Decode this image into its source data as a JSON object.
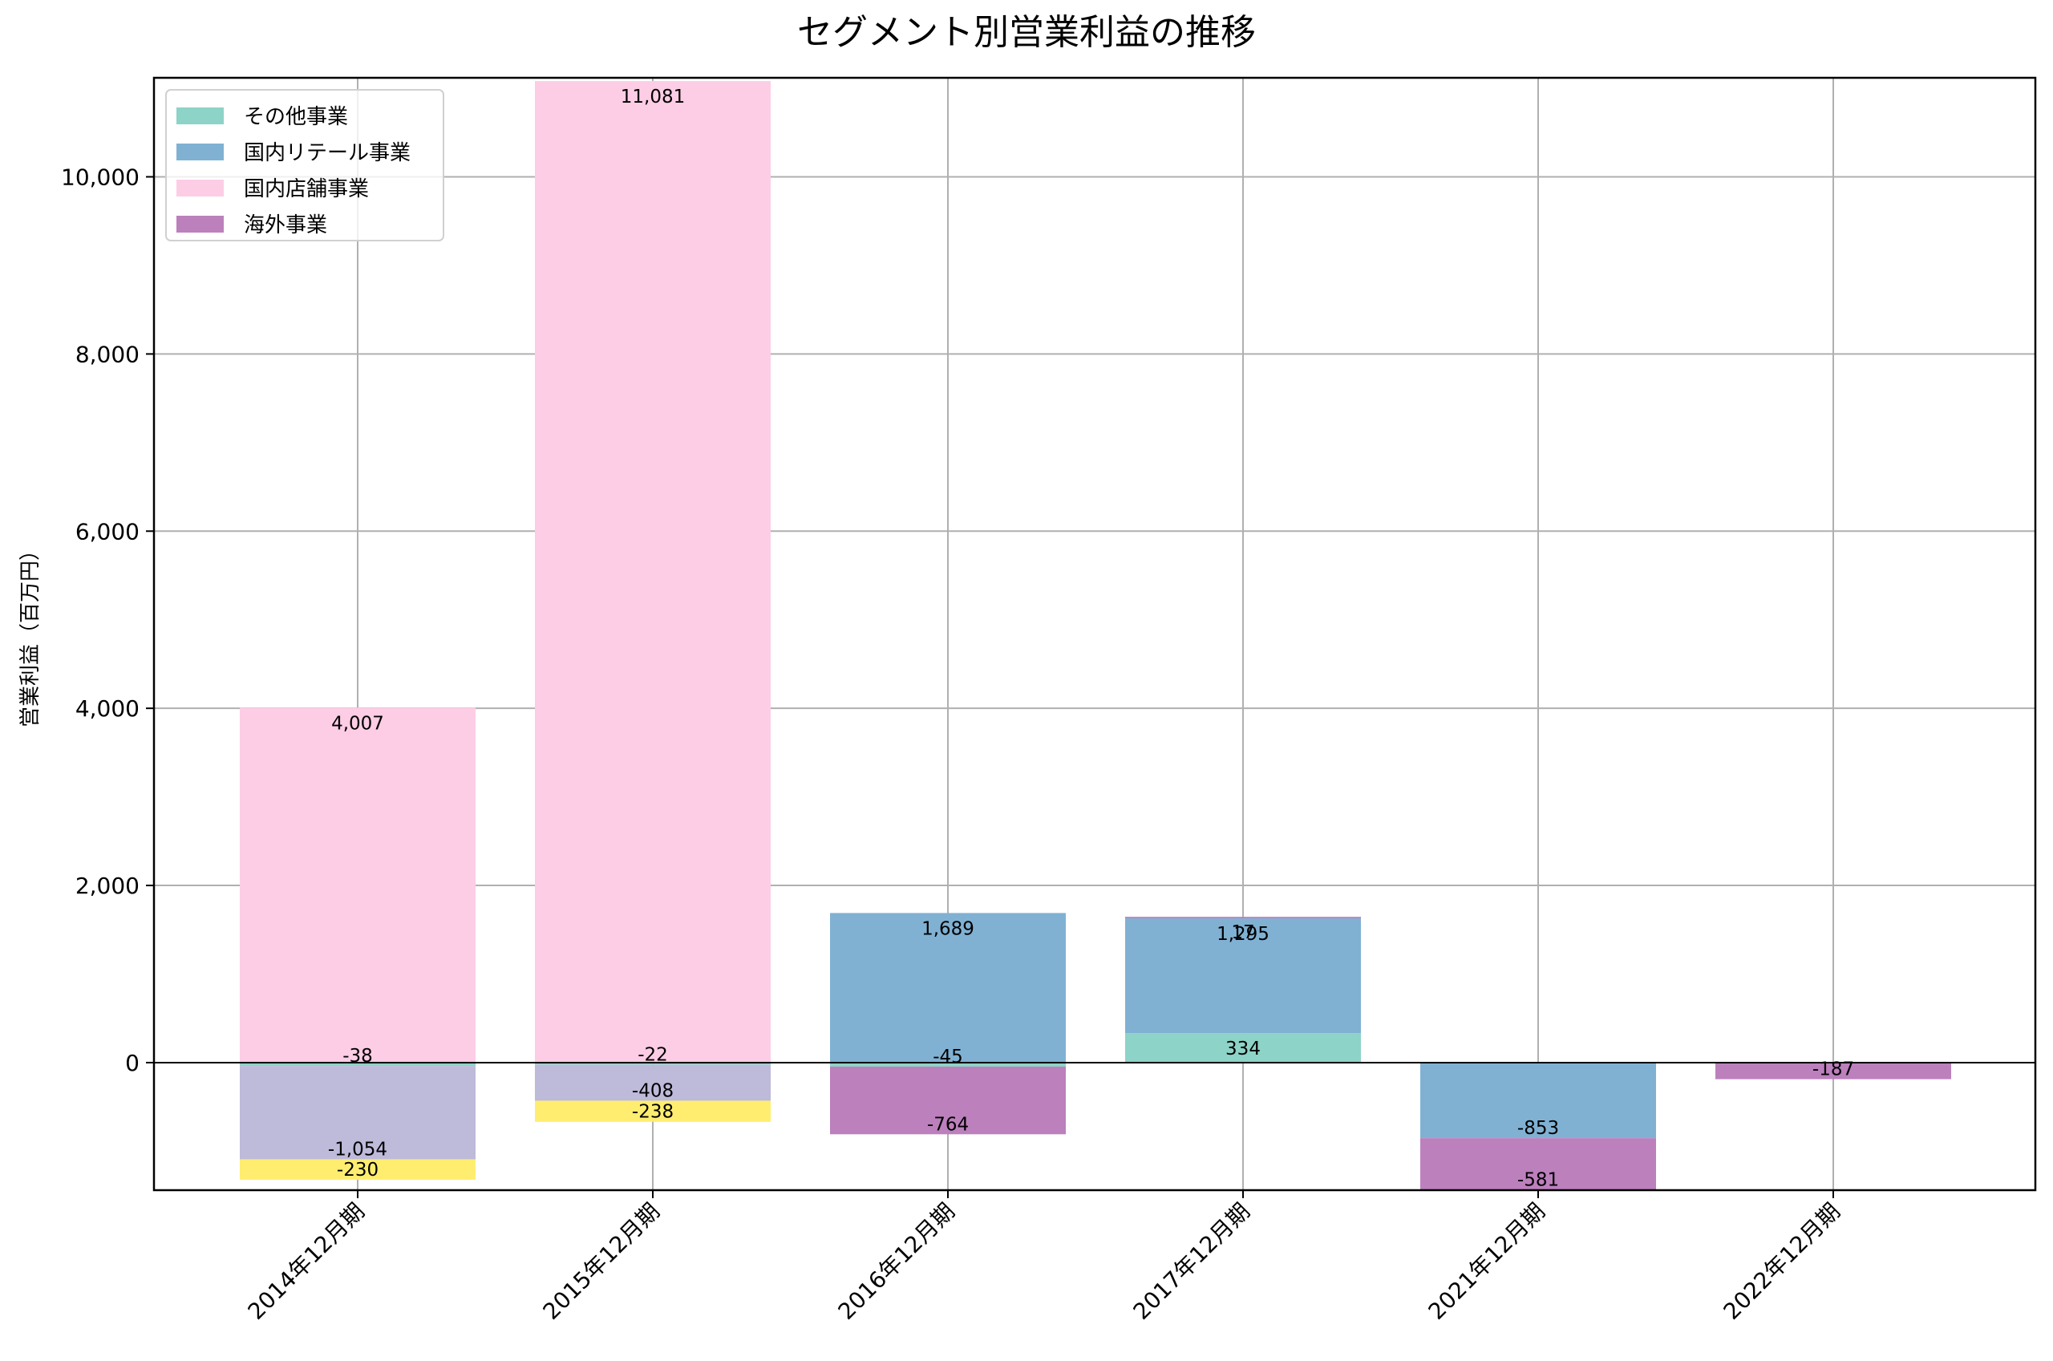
{
  "chart_data": {
    "type": "bar",
    "stacked": true,
    "title": "セグメント別営業利益の推移",
    "xlabel": "",
    "ylabel": "営業利益（百万円）",
    "categories": [
      "2014年12月期",
      "2015年12月期",
      "2016年12月期",
      "2017年12月期",
      "2021年12月期",
      "2022年12月期"
    ],
    "ylim": [
      -1440,
      11118
    ],
    "yticks": [
      0,
      2000,
      4000,
      6000,
      8000,
      10000
    ],
    "ytick_labels": [
      "0",
      "2,000",
      "4,000",
      "6,000",
      "8,000",
      "10,000"
    ],
    "grid": true,
    "legend_position": "upper left",
    "series": [
      {
        "name": "その他事業",
        "color": "#8dd3c7",
        "in_legend": true,
        "values": [
          -38,
          -22,
          -45,
          334,
          null,
          null
        ]
      },
      {
        "name": "国内リテール事業",
        "color": "#80b1d3",
        "in_legend": true,
        "values": [
          null,
          null,
          1689,
          1295,
          -853,
          null
        ]
      },
      {
        "name": "国内店舗事業",
        "color": "#fccde5",
        "in_legend": true,
        "values": [
          4007,
          11081,
          null,
          null,
          null,
          null
        ]
      },
      {
        "name": "海外事業",
        "color": "#bc80bd",
        "in_legend": true,
        "values": [
          null,
          null,
          -764,
          17,
          -581,
          -187
        ]
      },
      {
        "name": "",
        "color": "#bebada",
        "in_legend": false,
        "values": [
          -1054,
          -408,
          null,
          null,
          null,
          null
        ]
      },
      {
        "name": "",
        "color": "#ffed6f",
        "in_legend": false,
        "values": [
          -230,
          -238,
          null,
          null,
          null,
          null
        ]
      }
    ],
    "bar_labels": [
      [
        "-38",
        "4,007",
        "-1,054",
        "-230"
      ],
      [
        "-22",
        "11,081",
        "-408",
        "-238"
      ],
      [
        "-45",
        "1,689",
        "-764"
      ],
      [
        "334",
        "1,295",
        "17"
      ],
      [
        "-853",
        "-581"
      ],
      [
        "-187"
      ]
    ]
  },
  "legend": {
    "items": [
      {
        "label": "その他事業",
        "color": "#8dd3c7"
      },
      {
        "label": "国内リテール事業",
        "color": "#80b1d3"
      },
      {
        "label": "国内店舗事業",
        "color": "#fccde5"
      },
      {
        "label": "海外事業",
        "color": "#bc80bd"
      }
    ]
  }
}
